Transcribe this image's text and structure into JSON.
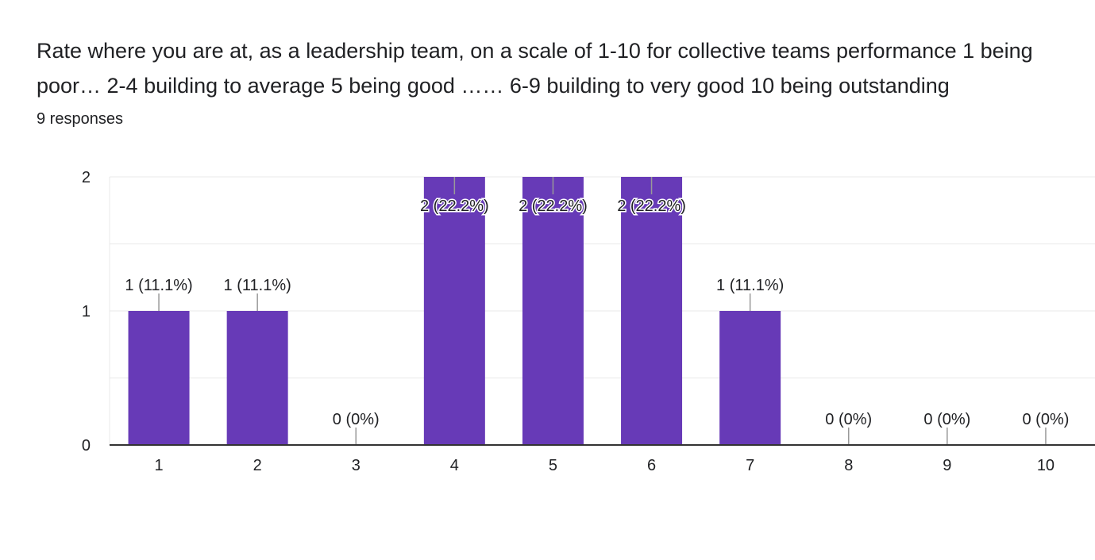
{
  "question": {
    "title": "Rate where you are at, as a leadership team, on a scale of 1-10 for collective teams performance  1 being poor…   2-4 building to average  5 being good ……   6-9 building to very good  10 being outstanding",
    "response_count": "9 responses"
  },
  "colors": {
    "bar": "#673ab7",
    "grid": "#e8e8e8",
    "axis": "#333333",
    "text": "#202124",
    "label_stem": "#999999"
  },
  "chart_data": {
    "type": "bar",
    "categories": [
      "1",
      "2",
      "3",
      "4",
      "5",
      "6",
      "7",
      "8",
      "9",
      "10"
    ],
    "values": [
      1,
      1,
      0,
      2,
      2,
      2,
      1,
      0,
      0,
      0
    ],
    "data_labels": [
      "1 (11.1%)",
      "1 (11.1%)",
      "0 (0%)",
      "2 (22.2%)",
      "2 (22.2%)",
      "2 (22.2%)",
      "1 (11.1%)",
      "0 (0%)",
      "0 (0%)",
      "0 (0%)"
    ],
    "y_ticks": [
      "0",
      "1",
      "2"
    ],
    "ylim": [
      0,
      2
    ],
    "grid": true
  }
}
